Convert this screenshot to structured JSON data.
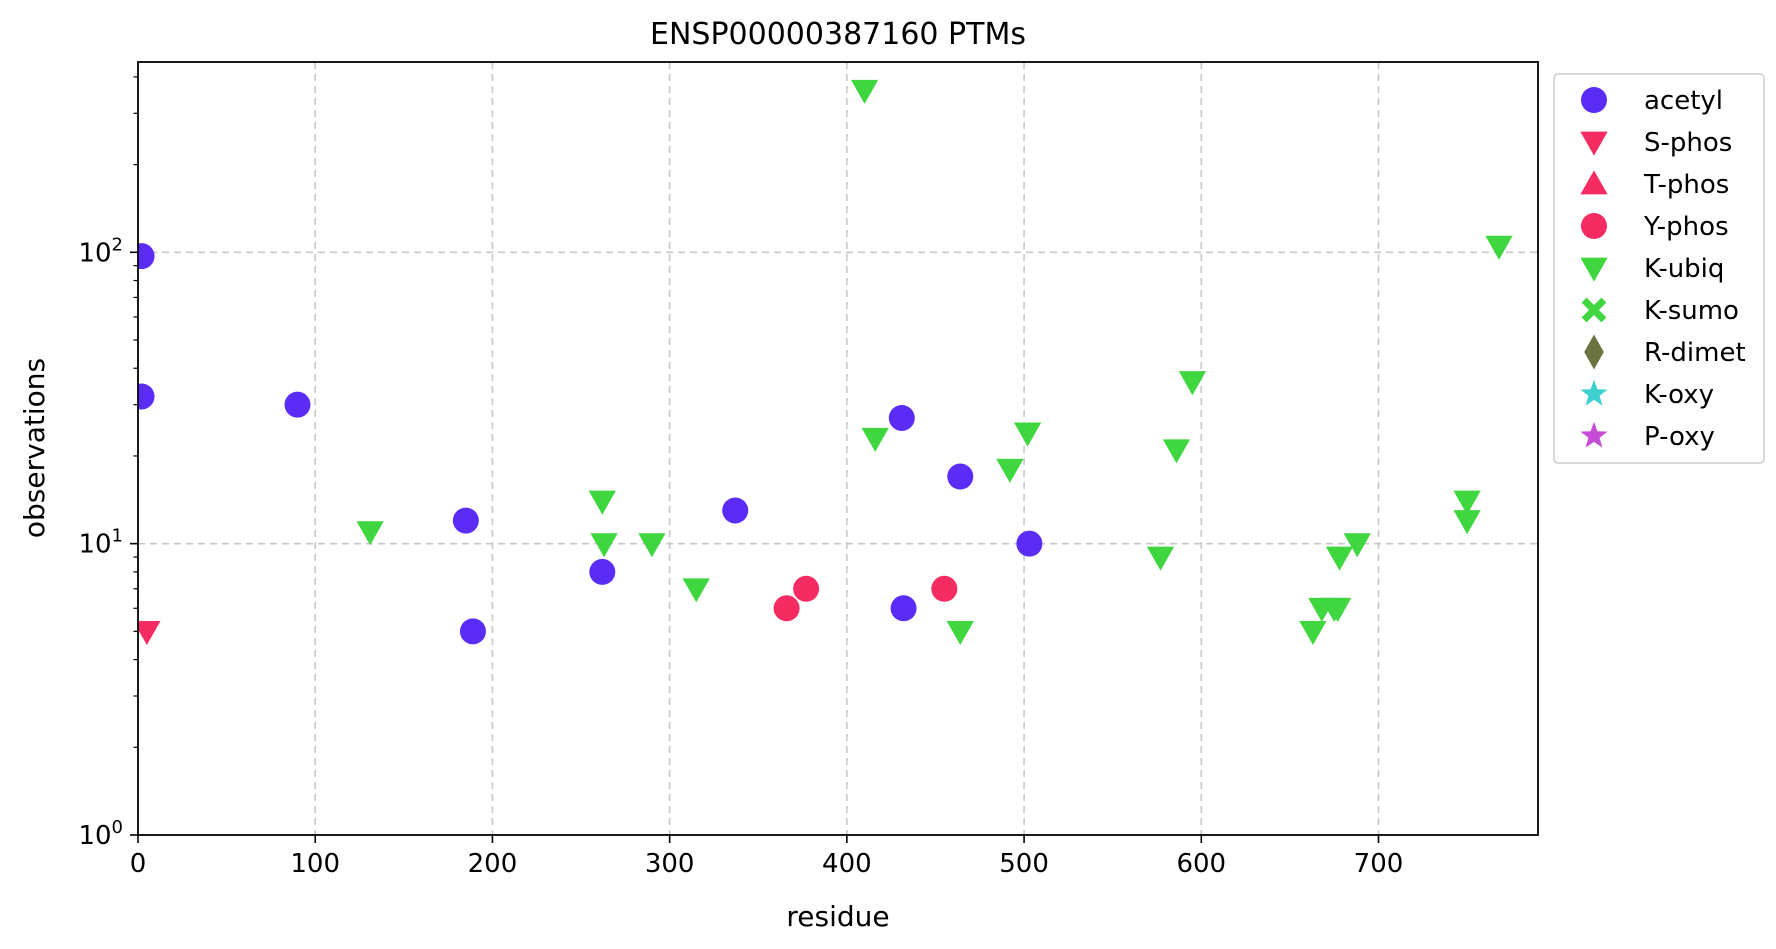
{
  "chart_data": {
    "type": "scatter",
    "title": "ENSP00000387160 PTMs",
    "xlabel": "residue",
    "ylabel": "observations",
    "xlim": [
      0,
      790
    ],
    "ylim": [
      1,
      450
    ],
    "yscale": "log",
    "grid": true,
    "legend_position": "outside-top-right",
    "x_ticks": [
      "0",
      "100",
      "200",
      "300",
      "400",
      "500",
      "600",
      "700"
    ],
    "y_ticks": [
      {
        "value": 1,
        "base": "10",
        "exp": "0"
      },
      {
        "value": 10,
        "base": "10",
        "exp": "1"
      },
      {
        "value": 100,
        "base": "10",
        "exp": "2"
      }
    ],
    "series": [
      {
        "name": "acetyl",
        "marker": "circle",
        "color": "#5b2cf5",
        "points": [
          [
            2,
            97
          ],
          [
            2,
            32
          ],
          [
            90,
            30
          ],
          [
            185,
            12
          ],
          [
            189,
            5
          ],
          [
            262,
            8
          ],
          [
            337,
            13
          ],
          [
            431,
            27
          ],
          [
            432,
            6
          ],
          [
            464,
            17
          ],
          [
            503,
            10
          ]
        ]
      },
      {
        "name": "S-phos",
        "marker": "triangle-down",
        "color": "#f52c62",
        "points": [
          [
            5,
            5
          ]
        ]
      },
      {
        "name": "T-phos",
        "marker": "triangle-up",
        "color": "#f52c62",
        "points": []
      },
      {
        "name": "Y-phos",
        "marker": "circle",
        "color": "#f52c62",
        "points": [
          [
            366,
            6
          ],
          [
            377,
            7
          ],
          [
            455,
            7
          ]
        ]
      },
      {
        "name": "K-ubiq",
        "marker": "triangle-down",
        "color": "#3fd63f",
        "points": [
          [
            131,
            11
          ],
          [
            262,
            14
          ],
          [
            263,
            10
          ],
          [
            290,
            10
          ],
          [
            315,
            7
          ],
          [
            410,
            360
          ],
          [
            416,
            23
          ],
          [
            464,
            5
          ],
          [
            492,
            18
          ],
          [
            502,
            24
          ],
          [
            577,
            9
          ],
          [
            586,
            21
          ],
          [
            595,
            36
          ],
          [
            663,
            5
          ],
          [
            668,
            6
          ],
          [
            675,
            6
          ],
          [
            677,
            6
          ],
          [
            678,
            9
          ],
          [
            688,
            10
          ],
          [
            750,
            14
          ],
          [
            750,
            12
          ],
          [
            768,
            105
          ]
        ]
      },
      {
        "name": "K-sumo",
        "marker": "x",
        "color": "#3fd63f",
        "points": []
      },
      {
        "name": "R-dimet",
        "marker": "diamond",
        "color": "#6b7340",
        "points": []
      },
      {
        "name": "K-oxy",
        "marker": "star",
        "color": "#3ecfcf",
        "points": []
      },
      {
        "name": "P-oxy",
        "marker": "star",
        "color": "#c84bd6",
        "points": []
      }
    ]
  }
}
